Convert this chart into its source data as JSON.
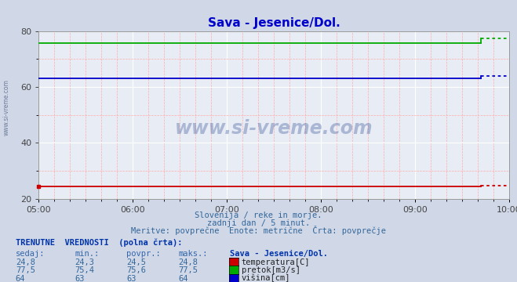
{
  "title": "Sava - Jesenice/Dol.",
  "title_color": "#0000cc",
  "bg_color": "#d0d8e8",
  "plot_bg_color": "#e8ecf4",
  "grid_color_major": "#ffffff",
  "grid_color_minor": "#ffaaaa",
  "ymin": 20,
  "ymax": 80,
  "yticks": [
    20,
    40,
    60,
    80
  ],
  "xtick_labels": [
    "05:00",
    "06:00",
    "07:00",
    "08:00",
    "09:00",
    "10:00"
  ],
  "xtick_positions": [
    0,
    72,
    144,
    216,
    288,
    360
  ],
  "temperatura_avg": 24.5,
  "temperatura_value": 24.8,
  "pretok_avg": 75.6,
  "pretok_value": 77.5,
  "visina_avg": 63.0,
  "visina_value": 64.0,
  "color_temperatura": "#cc0000",
  "color_pretok": "#00aa00",
  "color_visina": "#0000cc",
  "n_points": 335,
  "last_segment": 20,
  "footer_line1": "Slovenija / reke in morje.",
  "footer_line2": "zadnji dan / 5 minut.",
  "footer_line3": "Meritve: povprečne  Enote: metrične  Črta: povprečje",
  "table_header": "TRENUTNE  VREDNOSTI  (polna črta):",
  "col_sedaj": "sedaj:",
  "col_min": "min.:",
  "col_povpr": "povpr.:",
  "col_maks": "maks.:",
  "col_station": "Sava - Jesenice/Dol.",
  "watermark": "www.si-vreme.com",
  "temperatura_sedaj": "24,8",
  "temperatura_min": "24,3",
  "temperatura_povpr": "24,5",
  "temperatura_maks": "24,8",
  "pretok_sedaj": "77,5",
  "pretok_min": "75,4",
  "pretok_povpr": "75,6",
  "pretok_maks": "77,5",
  "visina_sedaj": "64",
  "visina_min": "63",
  "visina_povpr": "63",
  "visina_maks": "64"
}
